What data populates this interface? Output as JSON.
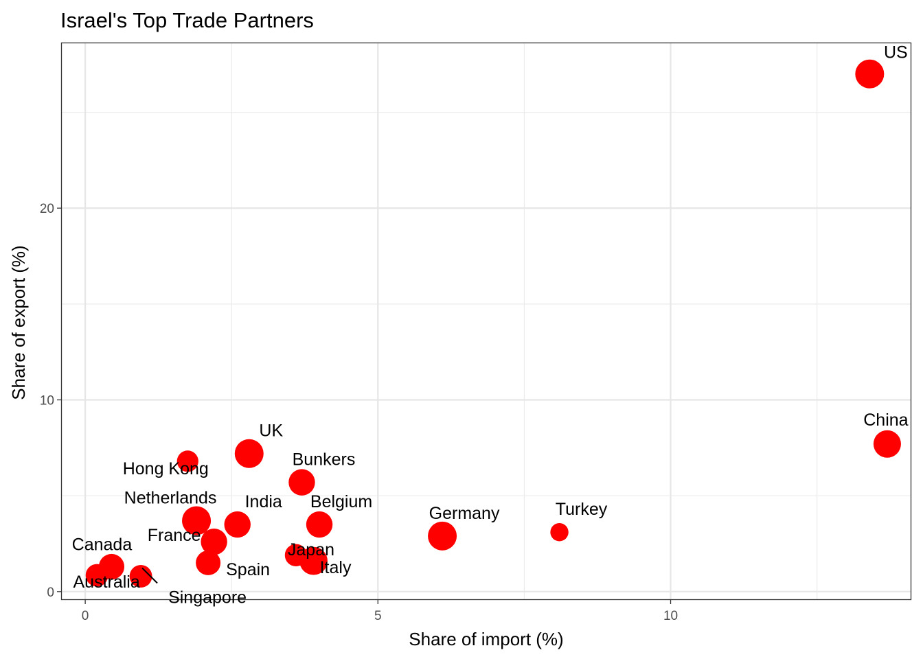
{
  "chart_data": {
    "type": "scatter",
    "title": "Israel's Top Trade Partners",
    "xlabel": "Share of import (%)",
    "ylabel": "Share of export (%)",
    "xlim": [
      -0.4,
      14.1
    ],
    "ylim": [
      -0.4,
      28.6
    ],
    "x_ticks": [
      "0",
      "5",
      "10"
    ],
    "y_ticks": [
      "0",
      "10",
      "20"
    ],
    "grid": true,
    "point_color": "#ff0000",
    "points": [
      {
        "label": "US",
        "x": 13.4,
        "y": 27.0,
        "size": 1.0
      },
      {
        "label": "China",
        "x": 13.7,
        "y": 7.7,
        "size": 0.92
      },
      {
        "label": "Turkey",
        "x": 8.1,
        "y": 3.1,
        "size": 0.35
      },
      {
        "label": "Germany",
        "x": 6.1,
        "y": 2.9,
        "size": 1.0
      },
      {
        "label": "UK",
        "x": 2.8,
        "y": 7.2,
        "size": 1.0
      },
      {
        "label": "Hong Kong",
        "x": 1.75,
        "y": 6.8,
        "size": 0.55
      },
      {
        "label": "Bunkers",
        "x": 3.7,
        "y": 5.7,
        "size": 0.85
      },
      {
        "label": "Netherlands",
        "x": 1.9,
        "y": 3.7,
        "size": 1.0
      },
      {
        "label": "India",
        "x": 2.6,
        "y": 3.5,
        "size": 0.85
      },
      {
        "label": "Belgium",
        "x": 4.0,
        "y": 3.5,
        "size": 0.85
      },
      {
        "label": "France",
        "x": 2.2,
        "y": 2.6,
        "size": 0.85
      },
      {
        "label": "Japan",
        "x": 3.6,
        "y": 1.9,
        "size": 0.6
      },
      {
        "label": "Spain",
        "x": 2.1,
        "y": 1.5,
        "size": 0.75
      },
      {
        "label": "Italy",
        "x": 3.9,
        "y": 1.6,
        "size": 0.95
      },
      {
        "label": "Canada",
        "x": 0.45,
        "y": 1.3,
        "size": 0.8
      },
      {
        "label": "Australia",
        "x": 0.2,
        "y": 0.85,
        "size": 0.62
      },
      {
        "label": "Singapore",
        "x": 0.95,
        "y": 0.8,
        "size": 0.62
      }
    ]
  }
}
